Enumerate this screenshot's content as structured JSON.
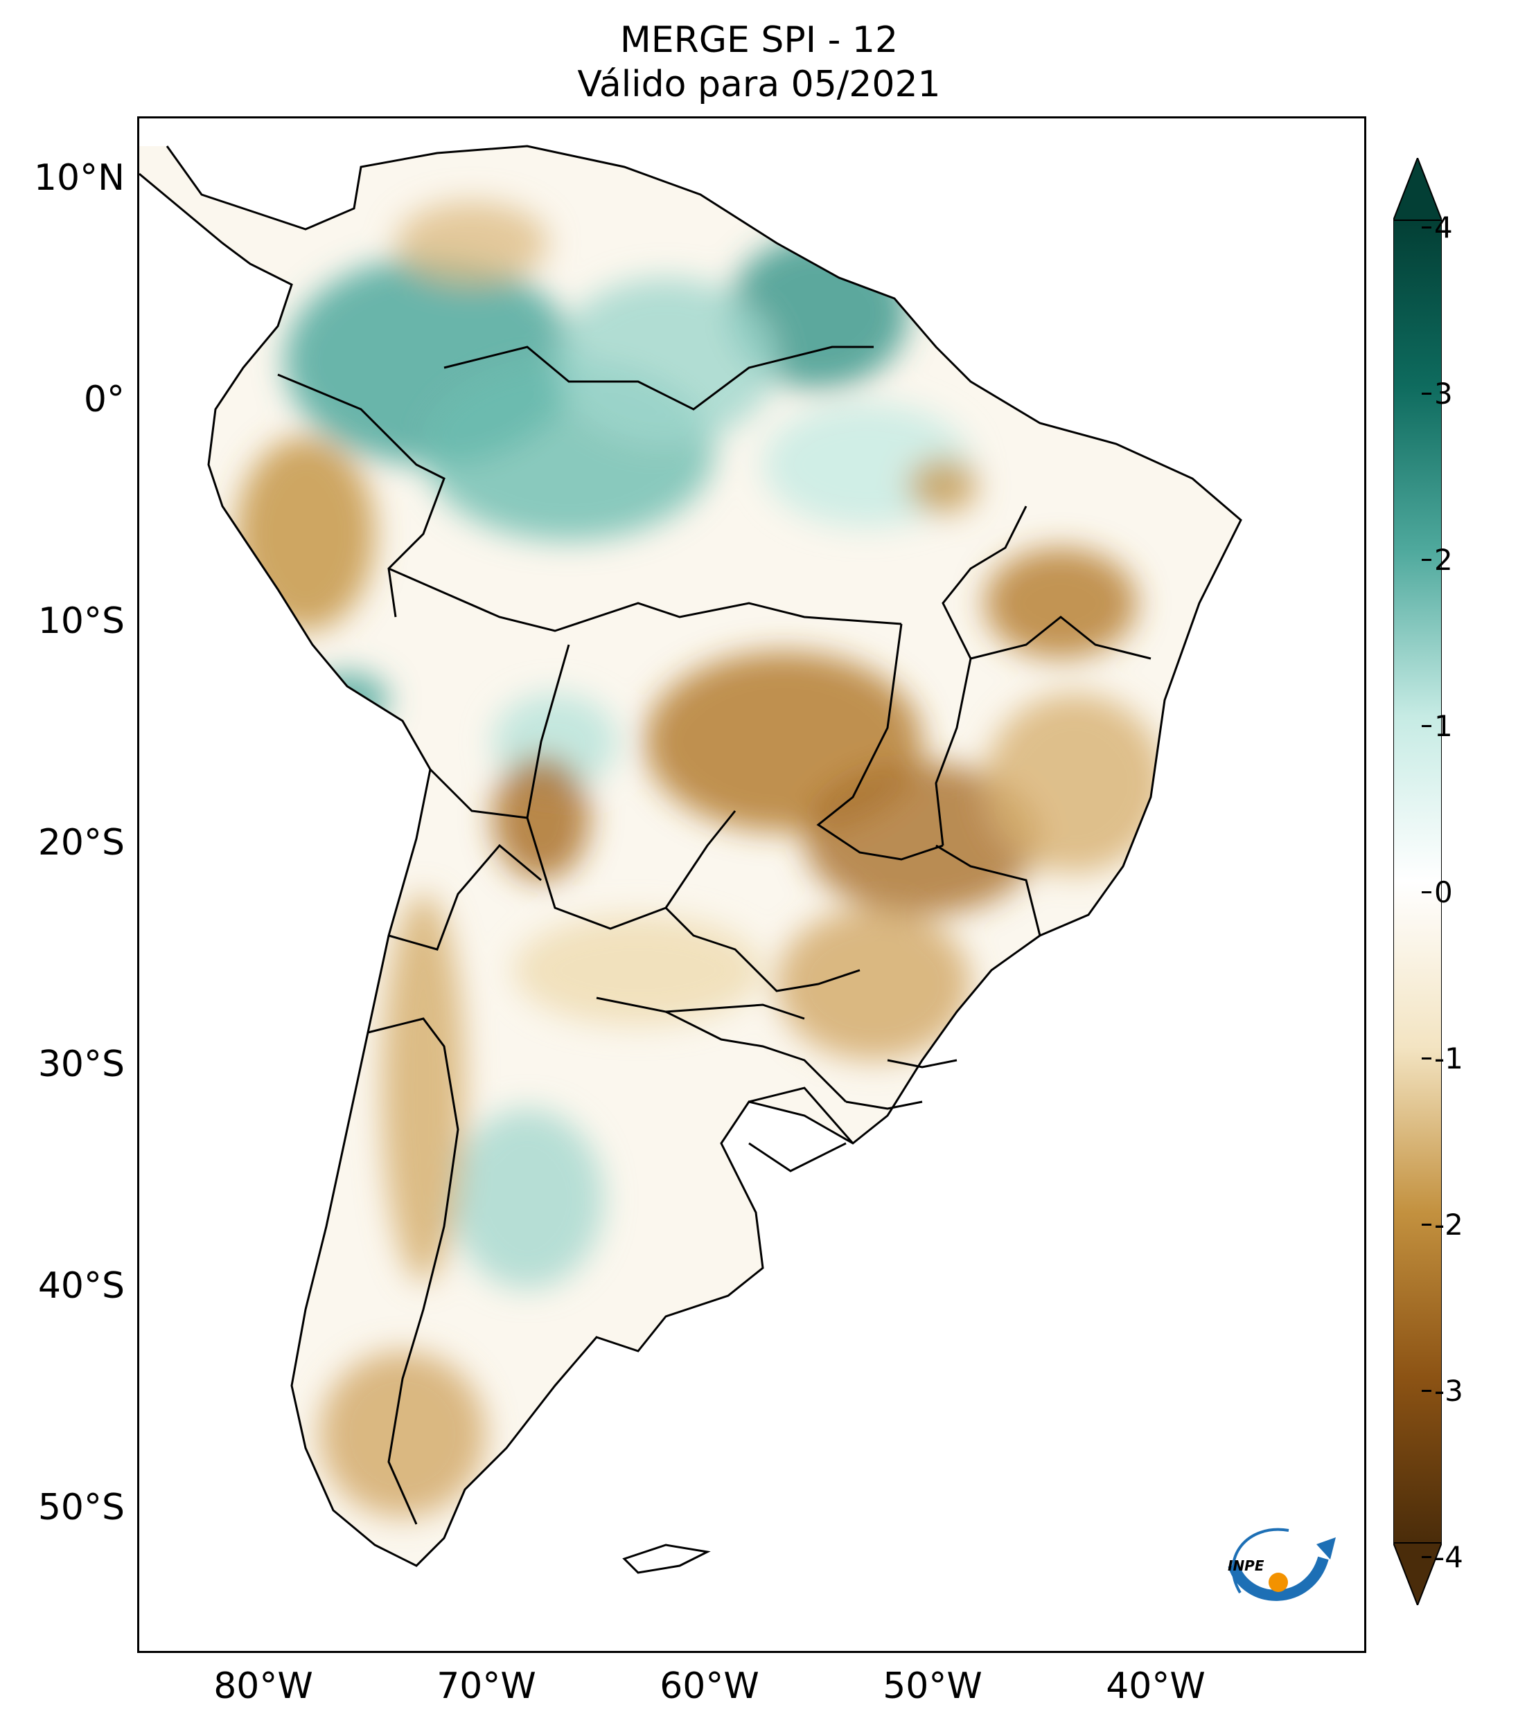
{
  "title": {
    "line1": "MERGE   SPI - 12",
    "line2": "Válido para 05/2021"
  },
  "axes": {
    "lat_labels": [
      "10°N",
      "0°",
      "10°S",
      "20°S",
      "30°S",
      "40°S",
      "50°S"
    ],
    "lon_labels": [
      "80°W",
      "70°W",
      "60°W",
      "50°W",
      "40°W"
    ]
  },
  "colorbar": {
    "labels": [
      "4",
      "3",
      "2",
      "1",
      "0",
      "-1",
      "-2",
      "-3",
      "-4"
    ],
    "colors": {
      "min": "#4a2c0a",
      "dry_strong": "#8c5314",
      "dry_mid": "#c3913f",
      "dry_light": "#f3e4c2",
      "neutral": "#ffffff",
      "wet_light": "#c6ebe4",
      "wet_mid": "#4fa99d",
      "wet_strong": "#0e6b5e",
      "max": "#033f35"
    }
  },
  "logo": {
    "text": "INPE"
  }
}
